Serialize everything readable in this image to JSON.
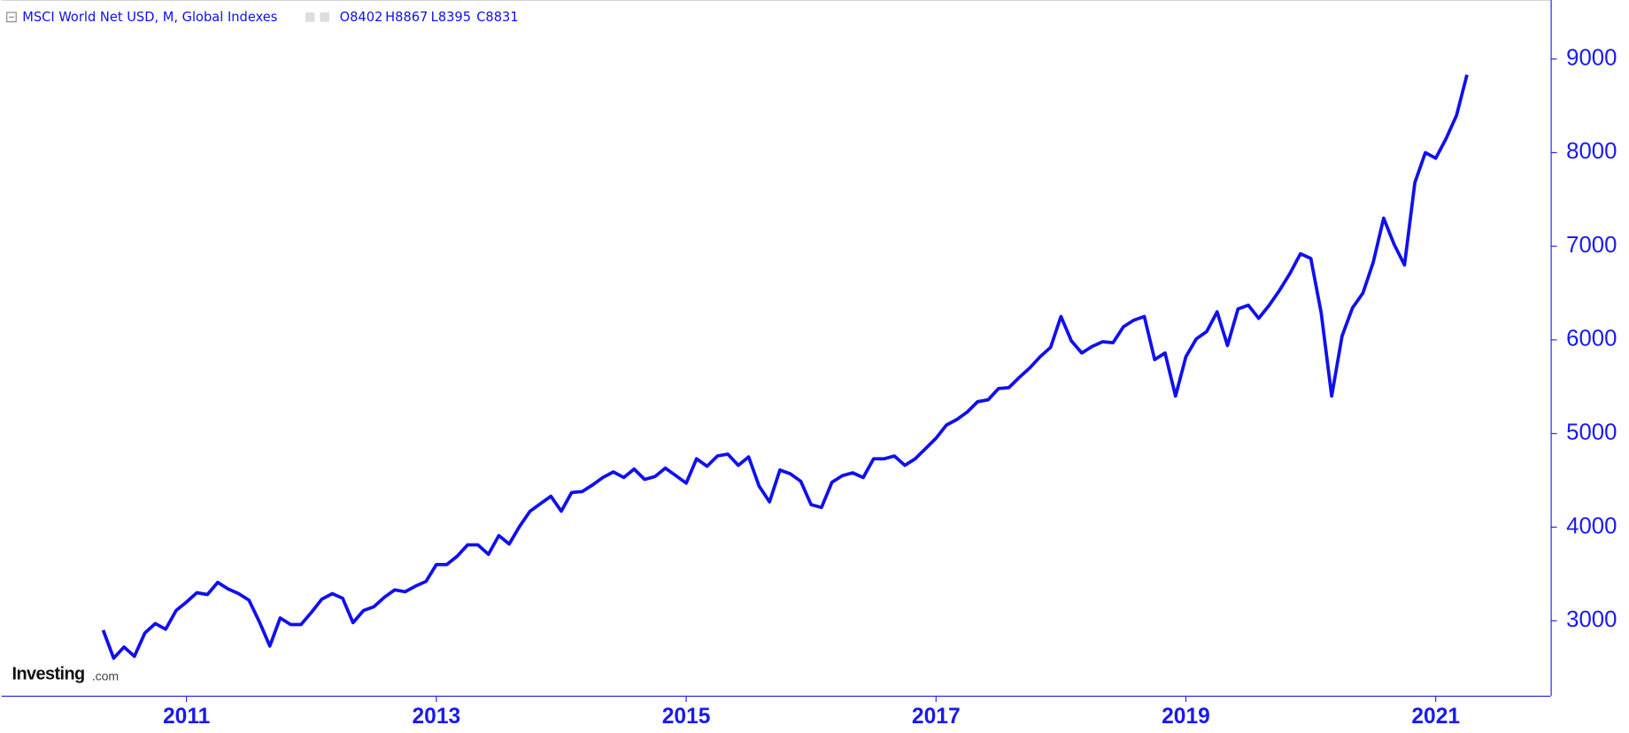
{
  "chart_data": {
    "type": "line",
    "title": "MSCI World Net USD, M, Global Indexes",
    "ohlc": [
      {
        "label": "O",
        "value": 8402
      },
      {
        "label": "H",
        "value": 8867
      },
      {
        "label": "L",
        "value": 8395
      },
      {
        "label": "C",
        "value": 8831
      }
    ],
    "logo": {
      "name": "Investing",
      "suffix": ".com"
    },
    "color": "#1010ee",
    "x": [
      2010.333,
      2010.417,
      2010.5,
      2010.583,
      2010.667,
      2010.75,
      2010.833,
      2010.917,
      2011.0,
      2011.083,
      2011.167,
      2011.25,
      2011.333,
      2011.417,
      2011.5,
      2011.583,
      2011.667,
      2011.75,
      2011.833,
      2011.917,
      2012.0,
      2012.083,
      2012.167,
      2012.25,
      2012.333,
      2012.417,
      2012.5,
      2012.583,
      2012.667,
      2012.75,
      2012.833,
      2012.917,
      2013.0,
      2013.083,
      2013.167,
      2013.25,
      2013.333,
      2013.417,
      2013.5,
      2013.583,
      2013.667,
      2013.75,
      2013.833,
      2013.917,
      2014.0,
      2014.083,
      2014.167,
      2014.25,
      2014.333,
      2014.417,
      2014.5,
      2014.583,
      2014.667,
      2014.75,
      2014.833,
      2014.917,
      2015.0,
      2015.083,
      2015.167,
      2015.25,
      2015.333,
      2015.417,
      2015.5,
      2015.583,
      2015.667,
      2015.75,
      2015.833,
      2015.917,
      2016.0,
      2016.083,
      2016.167,
      2016.25,
      2016.333,
      2016.417,
      2016.5,
      2016.583,
      2016.667,
      2016.75,
      2016.833,
      2016.917,
      2017.0,
      2017.083,
      2017.167,
      2017.25,
      2017.333,
      2017.417,
      2017.5,
      2017.583,
      2017.667,
      2017.75,
      2017.833,
      2017.917,
      2018.0,
      2018.083,
      2018.167,
      2018.25,
      2018.333,
      2018.417,
      2018.5,
      2018.583,
      2018.667,
      2018.75,
      2018.833,
      2018.917,
      2019.0,
      2019.083,
      2019.167,
      2019.25,
      2019.333,
      2019.417,
      2019.5,
      2019.583,
      2019.667,
      2019.75,
      2019.833,
      2019.917,
      2020.0,
      2020.083,
      2020.167,
      2020.25,
      2020.333,
      2020.417,
      2020.5,
      2020.583,
      2020.667,
      2020.75,
      2020.833,
      2020.917,
      2021.0,
      2021.083,
      2021.167,
      2021.25
    ],
    "values": [
      2900,
      2600,
      2720,
      2620,
      2870,
      2970,
      2910,
      3110,
      3200,
      3300,
      3280,
      3410,
      3340,
      3290,
      3220,
      2990,
      2730,
      3030,
      2960,
      2960,
      3090,
      3230,
      3290,
      3240,
      2980,
      3110,
      3150,
      3250,
      3330,
      3310,
      3370,
      3420,
      3600,
      3600,
      3690,
      3810,
      3810,
      3710,
      3910,
      3820,
      4010,
      4170,
      4250,
      4330,
      4170,
      4370,
      4380,
      4450,
      4530,
      4590,
      4530,
      4620,
      4510,
      4540,
      4630,
      4550,
      4470,
      4730,
      4650,
      4760,
      4780,
      4660,
      4750,
      4440,
      4270,
      4610,
      4570,
      4490,
      4240,
      4210,
      4480,
      4550,
      4580,
      4530,
      4730,
      4730,
      4760,
      4660,
      4730,
      4840,
      4950,
      5090,
      5150,
      5230,
      5340,
      5360,
      5480,
      5490,
      5600,
      5700,
      5820,
      5920,
      6250,
      5990,
      5860,
      5930,
      5980,
      5970,
      6140,
      6210,
      6250,
      5790,
      5860,
      5400,
      5820,
      6010,
      6090,
      6300,
      5940,
      6330,
      6370,
      6230,
      6370,
      6530,
      6710,
      6920,
      6870,
      6290,
      5400,
      6040,
      6340,
      6500,
      6830,
      7300,
      7020,
      6800,
      7680,
      8000,
      7940,
      8150,
      8400,
      8831
    ],
    "xlim": [
      2009.52,
      2021.92
    ],
    "xticks": [
      2011,
      2013,
      2015,
      2017,
      2019,
      2021
    ],
    "ylim": [
      2200,
      9630
    ],
    "yticks": [
      3000,
      4000,
      5000,
      6000,
      7000,
      8000,
      9000
    ]
  }
}
